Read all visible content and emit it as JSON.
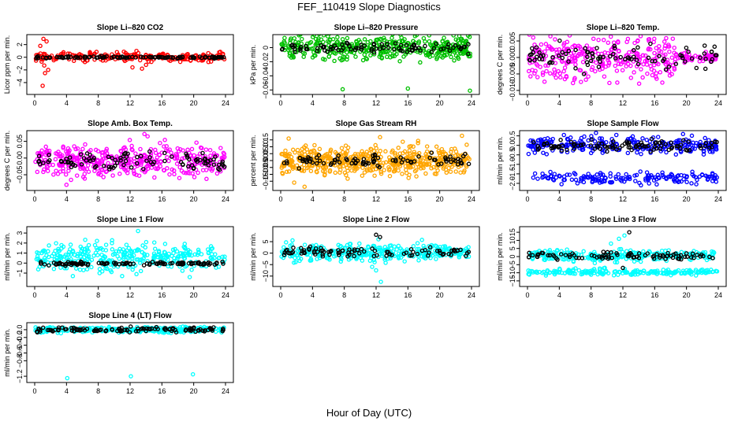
{
  "figure": {
    "title": "FEF_110419  Slope Diagnostics",
    "xlabel": "Hour of Day (UTC)"
  },
  "chart_data": [
    {
      "type": "scatter",
      "title": "Slope Li–820 CO2",
      "ylabel": "Licor ppm per min.",
      "color": "#ff0000",
      "xlim": [
        0,
        24
      ],
      "ylim": [
        -5.5,
        3.2
      ],
      "xticks": [
        0,
        4,
        8,
        12,
        16,
        20,
        24
      ],
      "xtick_labels": [
        "0",
        "4",
        "8",
        "12",
        "16",
        "20",
        "24"
      ],
      "yticks": [
        -4,
        -2,
        0,
        2
      ],
      "ytick_labels": [
        "−4",
        "−2",
        "0",
        "2"
      ],
      "series": [
        {
          "color": "#ff0000",
          "center": 0.05,
          "spread": 0.35,
          "n": 230,
          "outliers": [
            [
              1.1,
              2.9
            ],
            [
              1.5,
              2.5
            ],
            [
              0.7,
              1.8
            ],
            [
              1.2,
              -1.3
            ],
            [
              1.3,
              -2.5
            ],
            [
              1.0,
              -4.5
            ],
            [
              1.7,
              -2.0
            ],
            [
              12.3,
              -1.6
            ],
            [
              13.5,
              -1.8
            ],
            [
              14.0,
              -1.2
            ],
            [
              12.8,
              1.0
            ]
          ]
        },
        {
          "color": "#000000",
          "center": 0.0,
          "spread": 0.08,
          "n": 110,
          "outliers": []
        }
      ]
    },
    {
      "type": "scatter",
      "title": "Slope Li–820 Pressure",
      "ylabel": "kPa per min.",
      "color": "#00c000",
      "xlim": [
        0,
        24
      ],
      "ylim": [
        -0.063,
        0.015
      ],
      "xticks": [
        0,
        4,
        8,
        12,
        16,
        20,
        24
      ],
      "xtick_labels": [
        "0",
        "4",
        "8",
        "12",
        "16",
        "20",
        "24"
      ],
      "yticks": [
        -0.06,
        -0.04,
        -0.02,
        0
      ],
      "ytick_labels": [
        "−0.06",
        "−0.04",
        "−0.02",
        "0"
      ],
      "series": [
        {
          "color": "#00c000",
          "center": 0.0,
          "spread": 0.009,
          "n": 420,
          "outliers": [
            [
              7.8,
              -0.059
            ],
            [
              16.0,
              -0.058
            ],
            [
              23.8,
              -0.061
            ]
          ]
        },
        {
          "color": "#000000",
          "center": 0.0,
          "spread": 0.003,
          "n": 90,
          "outliers": [
            [
              23.6,
              -0.009
            ],
            [
              21.0,
              0.001
            ]
          ]
        }
      ]
    },
    {
      "type": "scatter",
      "title": "Slope Li–820 Temp.",
      "ylabel": "degrees C per min.",
      "color": "#ff00ff",
      "xlim": [
        0,
        24
      ],
      "ylim": [
        -0.0105,
        0.0062
      ],
      "xticks": [
        0,
        4,
        8,
        12,
        16,
        20,
        24
      ],
      "xtick_labels": [
        "0",
        "4",
        "8",
        "12",
        "16",
        "20",
        "24"
      ],
      "yticks": [
        -0.01,
        -0.005,
        0,
        0.005
      ],
      "ytick_labels": [
        "−0.010",
        "−0.005",
        "0.000",
        "0.005"
      ],
      "series": [
        {
          "color": "#ff00ff",
          "center": 0.0,
          "spread": 0.0038,
          "n": 300,
          "xmax": 18.5,
          "outliers": []
        },
        {
          "color": "#ff00ff",
          "center": 0.0,
          "spread": 0.0006,
          "n": 60,
          "xmin": 18.5,
          "outliers": []
        },
        {
          "color": "#000000",
          "center": 0.0,
          "spread": 0.002,
          "n": 90,
          "outliers": []
        }
      ]
    },
    {
      "type": "scatter",
      "title": "Slope Amb. Box Temp.",
      "ylabel": "degrees C per min.",
      "color": "#ff00ff",
      "xlim": [
        0,
        24
      ],
      "ylim": [
        -0.09,
        0.075
      ],
      "xticks": [
        0,
        4,
        8,
        12,
        16,
        20,
        24
      ],
      "xtick_labels": [
        "0",
        "4",
        "8",
        "12",
        "16",
        "20",
        "24"
      ],
      "yticks": [
        -0.05,
        0,
        0.05
      ],
      "ytick_labels": [
        "−0.05",
        "0.00",
        "0.05"
      ],
      "series": [
        {
          "color": "#ff00ff",
          "center": -0.008,
          "spread": 0.022,
          "n": 420,
          "outliers": [
            [
              13.8,
              0.072
            ],
            [
              14.2,
              0.065
            ],
            [
              4.0,
              -0.08
            ]
          ]
        },
        {
          "color": "#000000",
          "center": -0.01,
          "spread": 0.015,
          "n": 100,
          "outliers": []
        }
      ]
    },
    {
      "type": "scatter",
      "title": "Slope Gas Stream RH",
      "ylabel": "percent per min.",
      "color": "#ffa500",
      "xlim": [
        0,
        24
      ],
      "ylim": [
        -0.2,
        0.2
      ],
      "xticks": [
        0,
        4,
        8,
        12,
        16,
        20,
        24
      ],
      "xtick_labels": [
        "0",
        "4",
        "8",
        "12",
        "16",
        "20",
        "24"
      ],
      "yticks": [
        -0.15,
        -0.1,
        -0.05,
        0,
        0.05,
        0.1,
        0.15
      ],
      "ytick_labels": [
        "−0.15",
        "−0.10",
        "−0.05",
        "0.00",
        "0.05",
        "0.10",
        "0.15"
      ],
      "series": [
        {
          "color": "#ffa500",
          "center": 0.0,
          "spread": 0.05,
          "n": 520,
          "outliers": [
            [
              1.0,
              0.16
            ],
            [
              3.0,
              -0.19
            ],
            [
              12.5,
              0.17
            ],
            [
              22.8,
              0.18
            ],
            [
              1.7,
              -0.16
            ]
          ]
        },
        {
          "color": "#000000",
          "center": 0.0,
          "spread": 0.025,
          "n": 90,
          "outliers": []
        }
      ]
    },
    {
      "type": "scatter",
      "title": "Slope Sample Flow",
      "ylabel": "ml/min per min.",
      "color": "#0000ff",
      "xlim": [
        0,
        24
      ],
      "ylim": [
        -2.25,
        0.65
      ],
      "xticks": [
        0,
        4,
        8,
        12,
        16,
        20,
        24
      ],
      "xtick_labels": [
        "0",
        "4",
        "8",
        "12",
        "16",
        "20",
        "24"
      ],
      "yticks": [
        -2,
        -1.5,
        -1,
        -0.5,
        0,
        0.5
      ],
      "ytick_labels": [
        "−2.0",
        "−1.5",
        "−1.0",
        "−0.5",
        "0.0",
        "0.5"
      ],
      "series": [
        {
          "color": "#0000ff",
          "center": 0.0,
          "spread": 0.22,
          "n": 260,
          "outliers": []
        },
        {
          "color": "#0000ff",
          "center": -1.7,
          "spread": 0.15,
          "n": 160,
          "outliers": []
        },
        {
          "color": "#000000",
          "center": 0.0,
          "spread": 0.15,
          "n": 100,
          "outliers": []
        }
      ]
    },
    {
      "type": "scatter",
      "title": "Slope Line 1 Flow",
      "ylabel": "ml/min per min.",
      "color": "#00ffff",
      "xlim": [
        0,
        24
      ],
      "ylim": [
        -2.1,
        3.4
      ],
      "xticks": [
        0,
        4,
        8,
        12,
        16,
        20,
        24
      ],
      "xtick_labels": [
        "0",
        "4",
        "8",
        "12",
        "16",
        "20",
        "24"
      ],
      "yticks": [
        -1,
        0,
        1,
        2,
        3
      ],
      "ytick_labels": [
        "−1",
        "0",
        "1",
        "2",
        "3"
      ],
      "series": [
        {
          "color": "#00ffff",
          "center": 0.6,
          "spread": 0.7,
          "n": 330,
          "outliers": [
            [
              13.0,
              3.2
            ],
            [
              4.8,
              -1.3
            ],
            [
              11.0,
              -1.3
            ],
            [
              19.5,
              -1.4
            ],
            [
              12.8,
              -1.1
            ]
          ]
        },
        {
          "color": "#000000",
          "center": -0.05,
          "spread": 0.08,
          "n": 110,
          "outliers": []
        }
      ]
    },
    {
      "type": "scatter",
      "title": "Slope Line 2 Flow",
      "ylabel": "ml/min per min.",
      "color": "#00ffff",
      "xlim": [
        0,
        24
      ],
      "ylim": [
        -13.5,
        10.5
      ],
      "xticks": [
        0,
        4,
        8,
        12,
        16,
        20,
        24
      ],
      "xtick_labels": [
        "0",
        "4",
        "8",
        "12",
        "16",
        "20",
        "24"
      ],
      "yticks": [
        -10,
        -5,
        0,
        5
      ],
      "ytick_labels": [
        "−10",
        "−5",
        "0",
        "5"
      ],
      "series": [
        {
          "color": "#00ffff",
          "center": 0.3,
          "spread": 1.8,
          "n": 330,
          "outliers": [
            [
              12.6,
              -12.5
            ],
            [
              11.5,
              -6.0
            ],
            [
              12.0,
              -7.5
            ],
            [
              12.3,
              6.0
            ]
          ]
        },
        {
          "color": "#000000",
          "center": 0.5,
          "spread": 1.0,
          "n": 90,
          "outliers": [
            [
              12.0,
              8.0
            ],
            [
              12.5,
              7.0
            ]
          ]
        }
      ]
    },
    {
      "type": "scatter",
      "title": "Slope Line 3 Flow",
      "ylabel": "ml/min per min.",
      "color": "#00ffff",
      "xlim": [
        0,
        24
      ],
      "ylim": [
        -17,
        17
      ],
      "xticks": [
        0,
        4,
        8,
        12,
        16,
        20,
        24
      ],
      "xtick_labels": [
        "0",
        "4",
        "8",
        "12",
        "16",
        "20",
        "24"
      ],
      "yticks": [
        -15,
        -10,
        -5,
        0,
        5,
        10,
        15
      ],
      "ytick_labels": [
        "−15",
        "−10",
        "−5",
        "0",
        "5",
        "10",
        "15"
      ],
      "series": [
        {
          "color": "#00ffff",
          "center": 0.5,
          "spread": 1.8,
          "n": 260,
          "outliers": [
            [
              12.2,
              13.0
            ],
            [
              10.5,
              8.0
            ],
            [
              11.5,
              11.0
            ]
          ]
        },
        {
          "color": "#00ffff",
          "center": -9.5,
          "spread": 0.9,
          "n": 200,
          "outliers": []
        },
        {
          "color": "#000000",
          "center": 0.5,
          "spread": 1.2,
          "n": 90,
          "outliers": [
            [
              12.8,
              15.0
            ],
            [
              12.0,
              -7.0
            ]
          ]
        }
      ]
    },
    {
      "type": "scatter",
      "title": "Slope Line 4 (LT) Flow",
      "ylabel": "ml/min per min.",
      "color": "#00ffff",
      "xlim": [
        0,
        24
      ],
      "ylim": [
        -1.3,
        0.12
      ],
      "xticks": [
        0,
        4,
        8,
        12,
        16,
        20,
        24
      ],
      "xtick_labels": [
        "0",
        "4",
        "8",
        "12",
        "16",
        "20",
        "24"
      ],
      "yticks": [
        -1.2,
        -0.8,
        -0.6,
        -0.4,
        -0.2,
        0
      ],
      "ytick_labels": [
        "−1.2",
        "−0.8",
        "−0.6",
        "−0.4",
        "−0.2",
        "0.0"
      ],
      "series": [
        {
          "color": "#00ffff",
          "center": 0.0,
          "spread": 0.035,
          "n": 330,
          "outliers": [
            [
              4.1,
              -1.25
            ],
            [
              12.1,
              -1.2
            ],
            [
              19.9,
              -1.15
            ]
          ]
        },
        {
          "color": "#000000",
          "center": 0.0,
          "spread": 0.03,
          "n": 110,
          "outliers": []
        }
      ]
    }
  ]
}
